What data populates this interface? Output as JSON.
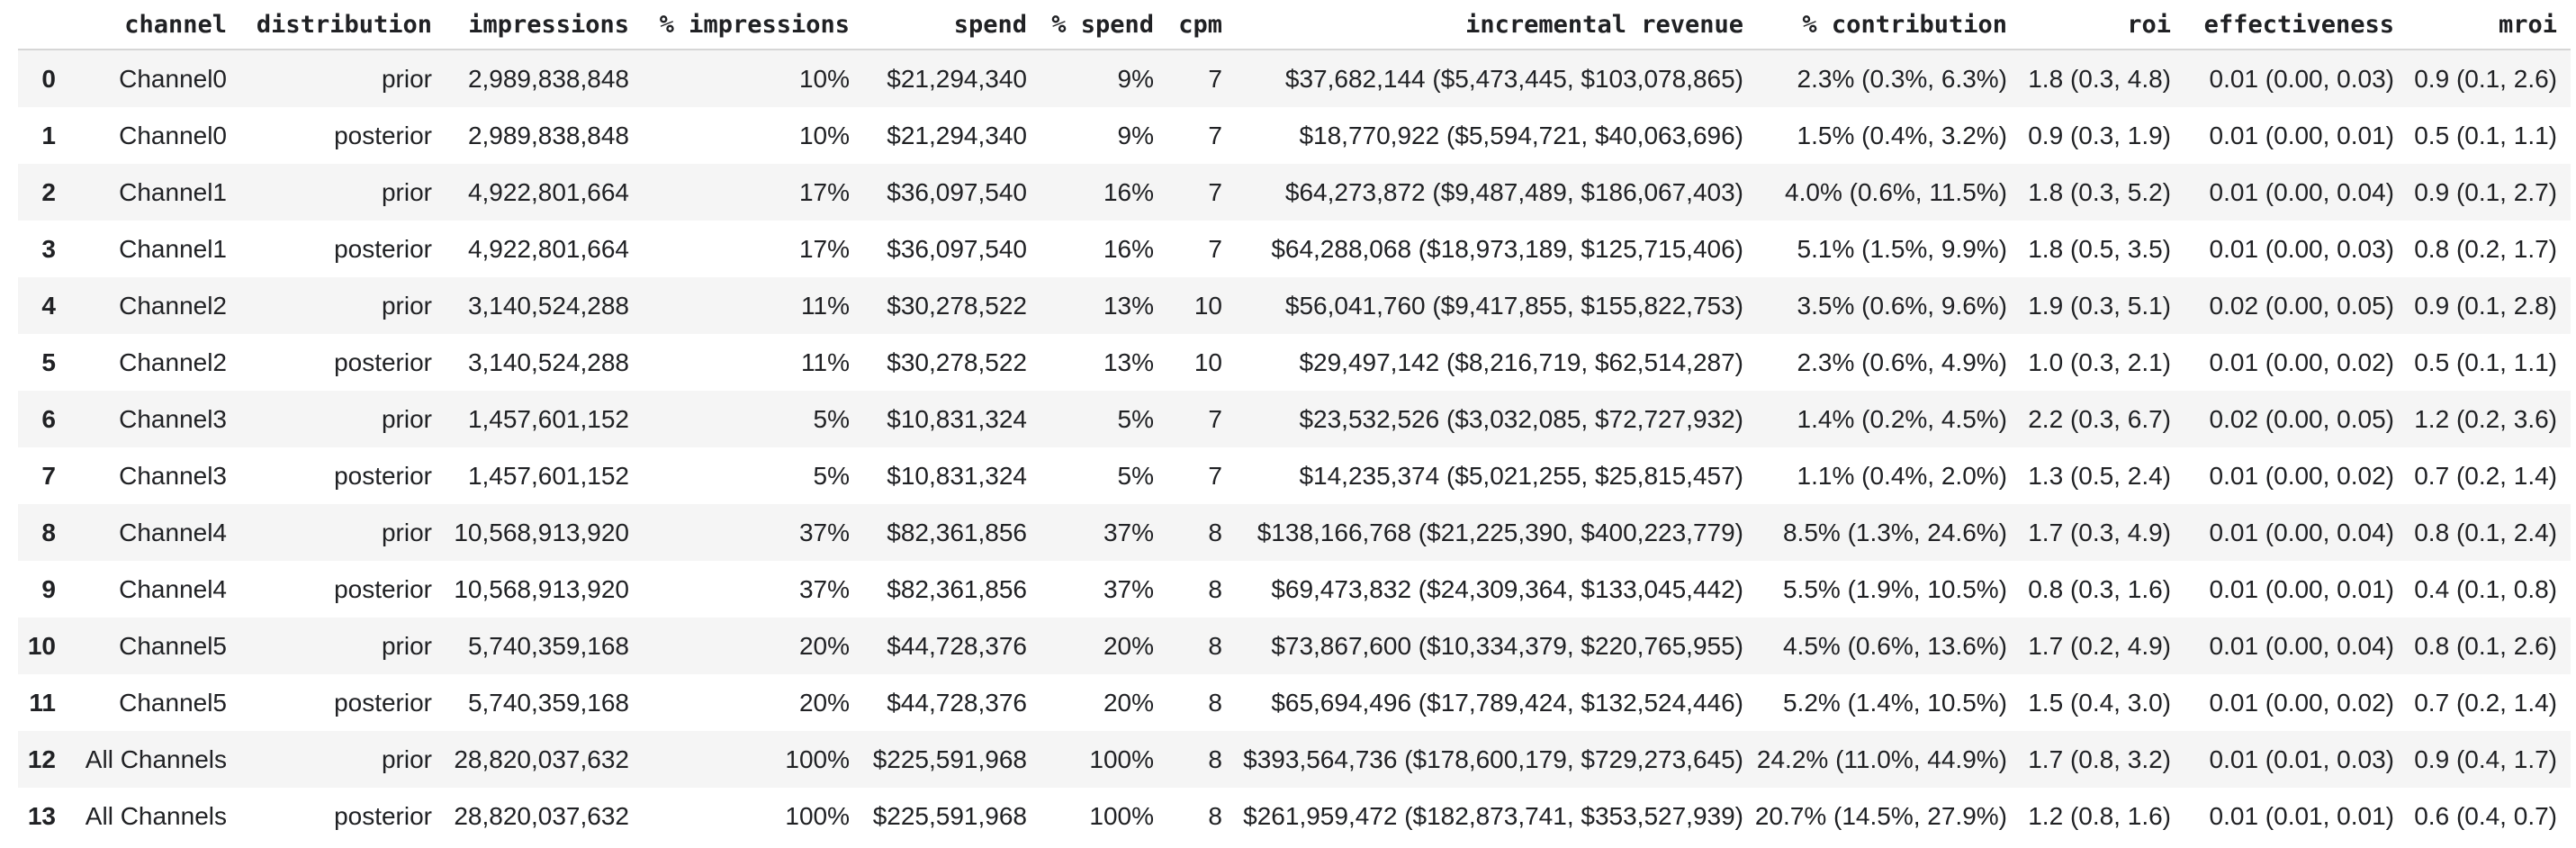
{
  "table": {
    "columns": [
      {
        "key": "index",
        "label": ""
      },
      {
        "key": "channel",
        "label": "channel"
      },
      {
        "key": "distribution",
        "label": "distribution"
      },
      {
        "key": "impressions",
        "label": "impressions"
      },
      {
        "key": "pct_impressions",
        "label": "% impressions"
      },
      {
        "key": "spend",
        "label": "spend"
      },
      {
        "key": "pct_spend",
        "label": "% spend"
      },
      {
        "key": "cpm",
        "label": "cpm"
      },
      {
        "key": "incremental_revenue",
        "label": "incremental revenue"
      },
      {
        "key": "pct_contribution",
        "label": "% contribution"
      },
      {
        "key": "roi",
        "label": "roi"
      },
      {
        "key": "effectiveness",
        "label": "effectiveness"
      },
      {
        "key": "mroi",
        "label": "mroi"
      }
    ],
    "rows": [
      [
        "0",
        "Channel0",
        "prior",
        "2,989,838,848",
        "10%",
        "$21,294,340",
        "9%",
        "7",
        "$37,682,144 ($5,473,445, $103,078,865)",
        "2.3% (0.3%, 6.3%)",
        "1.8 (0.3, 4.8)",
        "0.01 (0.00, 0.03)",
        "0.9 (0.1, 2.6)"
      ],
      [
        "1",
        "Channel0",
        "posterior",
        "2,989,838,848",
        "10%",
        "$21,294,340",
        "9%",
        "7",
        "$18,770,922 ($5,594,721, $40,063,696)",
        "1.5% (0.4%, 3.2%)",
        "0.9 (0.3, 1.9)",
        "0.01 (0.00, 0.01)",
        "0.5 (0.1, 1.1)"
      ],
      [
        "2",
        "Channel1",
        "prior",
        "4,922,801,664",
        "17%",
        "$36,097,540",
        "16%",
        "7",
        "$64,273,872 ($9,487,489, $186,067,403)",
        "4.0% (0.6%, 11.5%)",
        "1.8 (0.3, 5.2)",
        "0.01 (0.00, 0.04)",
        "0.9 (0.1, 2.7)"
      ],
      [
        "3",
        "Channel1",
        "posterior",
        "4,922,801,664",
        "17%",
        "$36,097,540",
        "16%",
        "7",
        "$64,288,068 ($18,973,189, $125,715,406)",
        "5.1% (1.5%, 9.9%)",
        "1.8 (0.5, 3.5)",
        "0.01 (0.00, 0.03)",
        "0.8 (0.2, 1.7)"
      ],
      [
        "4",
        "Channel2",
        "prior",
        "3,140,524,288",
        "11%",
        "$30,278,522",
        "13%",
        "10",
        "$56,041,760 ($9,417,855, $155,822,753)",
        "3.5% (0.6%, 9.6%)",
        "1.9 (0.3, 5.1)",
        "0.02 (0.00, 0.05)",
        "0.9 (0.1, 2.8)"
      ],
      [
        "5",
        "Channel2",
        "posterior",
        "3,140,524,288",
        "11%",
        "$30,278,522",
        "13%",
        "10",
        "$29,497,142 ($8,216,719, $62,514,287)",
        "2.3% (0.6%, 4.9%)",
        "1.0 (0.3, 2.1)",
        "0.01 (0.00, 0.02)",
        "0.5 (0.1, 1.1)"
      ],
      [
        "6",
        "Channel3",
        "prior",
        "1,457,601,152",
        "5%",
        "$10,831,324",
        "5%",
        "7",
        "$23,532,526 ($3,032,085, $72,727,932)",
        "1.4% (0.2%, 4.5%)",
        "2.2 (0.3, 6.7)",
        "0.02 (0.00, 0.05)",
        "1.2 (0.2, 3.6)"
      ],
      [
        "7",
        "Channel3",
        "posterior",
        "1,457,601,152",
        "5%",
        "$10,831,324",
        "5%",
        "7",
        "$14,235,374 ($5,021,255, $25,815,457)",
        "1.1% (0.4%, 2.0%)",
        "1.3 (0.5, 2.4)",
        "0.01 (0.00, 0.02)",
        "0.7 (0.2, 1.4)"
      ],
      [
        "8",
        "Channel4",
        "prior",
        "10,568,913,920",
        "37%",
        "$82,361,856",
        "37%",
        "8",
        "$138,166,768 ($21,225,390, $400,223,779)",
        "8.5% (1.3%, 24.6%)",
        "1.7 (0.3, 4.9)",
        "0.01 (0.00, 0.04)",
        "0.8 (0.1, 2.4)"
      ],
      [
        "9",
        "Channel4",
        "posterior",
        "10,568,913,920",
        "37%",
        "$82,361,856",
        "37%",
        "8",
        "$69,473,832 ($24,309,364, $133,045,442)",
        "5.5% (1.9%, 10.5%)",
        "0.8 (0.3, 1.6)",
        "0.01 (0.00, 0.01)",
        "0.4 (0.1, 0.8)"
      ],
      [
        "10",
        "Channel5",
        "prior",
        "5,740,359,168",
        "20%",
        "$44,728,376",
        "20%",
        "8",
        "$73,867,600 ($10,334,379, $220,765,955)",
        "4.5% (0.6%, 13.6%)",
        "1.7 (0.2, 4.9)",
        "0.01 (0.00, 0.04)",
        "0.8 (0.1, 2.6)"
      ],
      [
        "11",
        "Channel5",
        "posterior",
        "5,740,359,168",
        "20%",
        "$44,728,376",
        "20%",
        "8",
        "$65,694,496 ($17,789,424, $132,524,446)",
        "5.2% (1.4%, 10.5%)",
        "1.5 (0.4, 3.0)",
        "0.01 (0.00, 0.02)",
        "0.7 (0.2, 1.4)"
      ],
      [
        "12",
        "All Channels",
        "prior",
        "28,820,037,632",
        "100%",
        "$225,591,968",
        "100%",
        "8",
        "$393,564,736 ($178,600,179, $729,273,645)",
        "24.2% (11.0%, 44.9%)",
        "1.7 (0.8, 3.2)",
        "0.01 (0.01, 0.03)",
        "0.9 (0.4, 1.7)"
      ],
      [
        "13",
        "All Channels",
        "posterior",
        "28,820,037,632",
        "100%",
        "$225,591,968",
        "100%",
        "8",
        "$261,959,472 ($182,873,741, $353,527,939)",
        "20.7% (14.5%, 27.9%)",
        "1.2 (0.8, 1.6)",
        "0.01 (0.01, 0.01)",
        "0.6 (0.4, 0.7)"
      ]
    ]
  },
  "colors": {
    "background": "#ffffff",
    "stripe": "#f5f5f5",
    "header_border": "#d6d6d6",
    "text": "#202124"
  }
}
